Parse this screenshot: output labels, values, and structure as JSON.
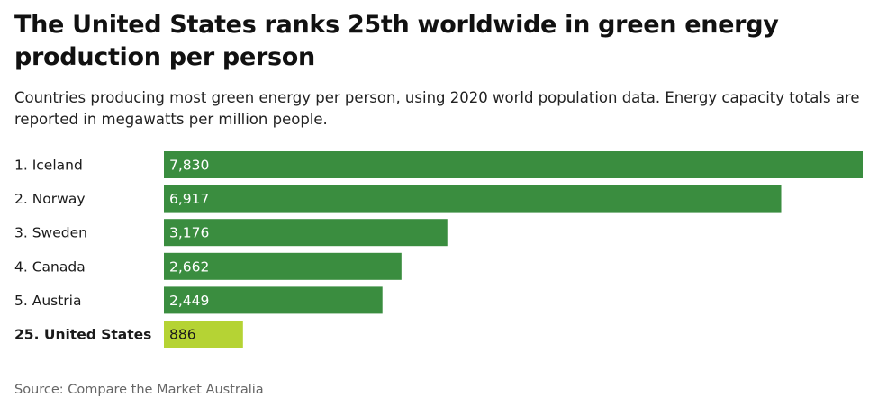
{
  "title": "The United States ranks 25th worldwide in green energy production per person",
  "subtitle": "Countries producing most green energy per person, using 2020 world population data. Energy capacity totals are reported in megawatts per million people.",
  "source": "Source: Compare the Market Australia",
  "colors": {
    "bar": "#3a8d3f",
    "highlight_bar": "#b5d334",
    "bar_label": "#ffffff",
    "highlight_label": "#1a1a1a"
  },
  "chart_data": {
    "type": "bar",
    "orientation": "horizontal",
    "categories": [
      "1. Iceland",
      "2. Norway",
      "3. Sweden",
      "4. Canada",
      "5. Austria",
      "25. United States"
    ],
    "values": [
      7830,
      6917,
      3176,
      2662,
      2449,
      886
    ],
    "value_labels": [
      "7,830",
      "6,917",
      "3,176",
      "2,662",
      "2,449",
      "886"
    ],
    "highlight": [
      "25. United States"
    ],
    "grid": false,
    "legend": "none"
  }
}
